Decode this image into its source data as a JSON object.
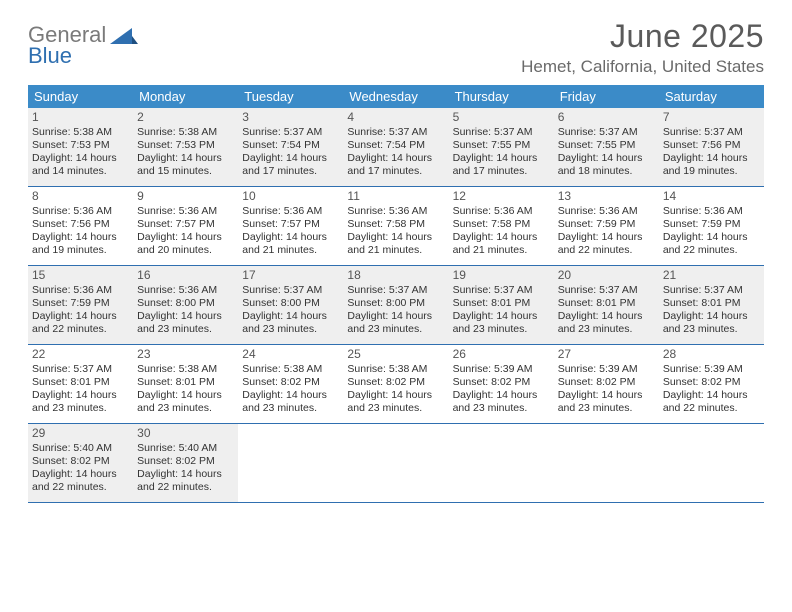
{
  "logo": {
    "line1": "General",
    "line2": "Blue"
  },
  "title": "June 2025",
  "location": "Hemet, California, United States",
  "colors": {
    "header_bg": "#3b8bc8",
    "week_border": "#2f6fb0",
    "shaded_bg": "#efefef",
    "text_dark": "#333333",
    "text_muted": "#6a6a6a",
    "title_color": "#5a5a5a"
  },
  "weekdays": [
    "Sunday",
    "Monday",
    "Tuesday",
    "Wednesday",
    "Thursday",
    "Friday",
    "Saturday"
  ],
  "weeks": [
    {
      "shaded": true,
      "days": [
        {
          "n": "1",
          "sr": "5:38 AM",
          "ss": "7:53 PM",
          "d1": "Daylight: 14 hours",
          "d2": "and 14 minutes."
        },
        {
          "n": "2",
          "sr": "5:38 AM",
          "ss": "7:53 PM",
          "d1": "Daylight: 14 hours",
          "d2": "and 15 minutes."
        },
        {
          "n": "3",
          "sr": "5:37 AM",
          "ss": "7:54 PM",
          "d1": "Daylight: 14 hours",
          "d2": "and 17 minutes."
        },
        {
          "n": "4",
          "sr": "5:37 AM",
          "ss": "7:54 PM",
          "d1": "Daylight: 14 hours",
          "d2": "and 17 minutes."
        },
        {
          "n": "5",
          "sr": "5:37 AM",
          "ss": "7:55 PM",
          "d1": "Daylight: 14 hours",
          "d2": "and 17 minutes."
        },
        {
          "n": "6",
          "sr": "5:37 AM",
          "ss": "7:55 PM",
          "d1": "Daylight: 14 hours",
          "d2": "and 18 minutes."
        },
        {
          "n": "7",
          "sr": "5:37 AM",
          "ss": "7:56 PM",
          "d1": "Daylight: 14 hours",
          "d2": "and 19 minutes."
        }
      ]
    },
    {
      "shaded": false,
      "days": [
        {
          "n": "8",
          "sr": "5:36 AM",
          "ss": "7:56 PM",
          "d1": "Daylight: 14 hours",
          "d2": "and 19 minutes."
        },
        {
          "n": "9",
          "sr": "5:36 AM",
          "ss": "7:57 PM",
          "d1": "Daylight: 14 hours",
          "d2": "and 20 minutes."
        },
        {
          "n": "10",
          "sr": "5:36 AM",
          "ss": "7:57 PM",
          "d1": "Daylight: 14 hours",
          "d2": "and 21 minutes."
        },
        {
          "n": "11",
          "sr": "5:36 AM",
          "ss": "7:58 PM",
          "d1": "Daylight: 14 hours",
          "d2": "and 21 minutes."
        },
        {
          "n": "12",
          "sr": "5:36 AM",
          "ss": "7:58 PM",
          "d1": "Daylight: 14 hours",
          "d2": "and 21 minutes."
        },
        {
          "n": "13",
          "sr": "5:36 AM",
          "ss": "7:59 PM",
          "d1": "Daylight: 14 hours",
          "d2": "and 22 minutes."
        },
        {
          "n": "14",
          "sr": "5:36 AM",
          "ss": "7:59 PM",
          "d1": "Daylight: 14 hours",
          "d2": "and 22 minutes."
        }
      ]
    },
    {
      "shaded": true,
      "days": [
        {
          "n": "15",
          "sr": "5:36 AM",
          "ss": "7:59 PM",
          "d1": "Daylight: 14 hours",
          "d2": "and 22 minutes."
        },
        {
          "n": "16",
          "sr": "5:36 AM",
          "ss": "8:00 PM",
          "d1": "Daylight: 14 hours",
          "d2": "and 23 minutes."
        },
        {
          "n": "17",
          "sr": "5:37 AM",
          "ss": "8:00 PM",
          "d1": "Daylight: 14 hours",
          "d2": "and 23 minutes."
        },
        {
          "n": "18",
          "sr": "5:37 AM",
          "ss": "8:00 PM",
          "d1": "Daylight: 14 hours",
          "d2": "and 23 minutes."
        },
        {
          "n": "19",
          "sr": "5:37 AM",
          "ss": "8:01 PM",
          "d1": "Daylight: 14 hours",
          "d2": "and 23 minutes."
        },
        {
          "n": "20",
          "sr": "5:37 AM",
          "ss": "8:01 PM",
          "d1": "Daylight: 14 hours",
          "d2": "and 23 minutes."
        },
        {
          "n": "21",
          "sr": "5:37 AM",
          "ss": "8:01 PM",
          "d1": "Daylight: 14 hours",
          "d2": "and 23 minutes."
        }
      ]
    },
    {
      "shaded": false,
      "days": [
        {
          "n": "22",
          "sr": "5:37 AM",
          "ss": "8:01 PM",
          "d1": "Daylight: 14 hours",
          "d2": "and 23 minutes."
        },
        {
          "n": "23",
          "sr": "5:38 AM",
          "ss": "8:01 PM",
          "d1": "Daylight: 14 hours",
          "d2": "and 23 minutes."
        },
        {
          "n": "24",
          "sr": "5:38 AM",
          "ss": "8:02 PM",
          "d1": "Daylight: 14 hours",
          "d2": "and 23 minutes."
        },
        {
          "n": "25",
          "sr": "5:38 AM",
          "ss": "8:02 PM",
          "d1": "Daylight: 14 hours",
          "d2": "and 23 minutes."
        },
        {
          "n": "26",
          "sr": "5:39 AM",
          "ss": "8:02 PM",
          "d1": "Daylight: 14 hours",
          "d2": "and 23 minutes."
        },
        {
          "n": "27",
          "sr": "5:39 AM",
          "ss": "8:02 PM",
          "d1": "Daylight: 14 hours",
          "d2": "and 23 minutes."
        },
        {
          "n": "28",
          "sr": "5:39 AM",
          "ss": "8:02 PM",
          "d1": "Daylight: 14 hours",
          "d2": "and 22 minutes."
        }
      ]
    },
    {
      "shaded": true,
      "days": [
        {
          "n": "29",
          "sr": "5:40 AM",
          "ss": "8:02 PM",
          "d1": "Daylight: 14 hours",
          "d2": "and 22 minutes."
        },
        {
          "n": "30",
          "sr": "5:40 AM",
          "ss": "8:02 PM",
          "d1": "Daylight: 14 hours",
          "d2": "and 22 minutes."
        },
        null,
        null,
        null,
        null,
        null
      ]
    }
  ],
  "labels": {
    "sunrise_prefix": "Sunrise: ",
    "sunset_prefix": "Sunset: "
  }
}
